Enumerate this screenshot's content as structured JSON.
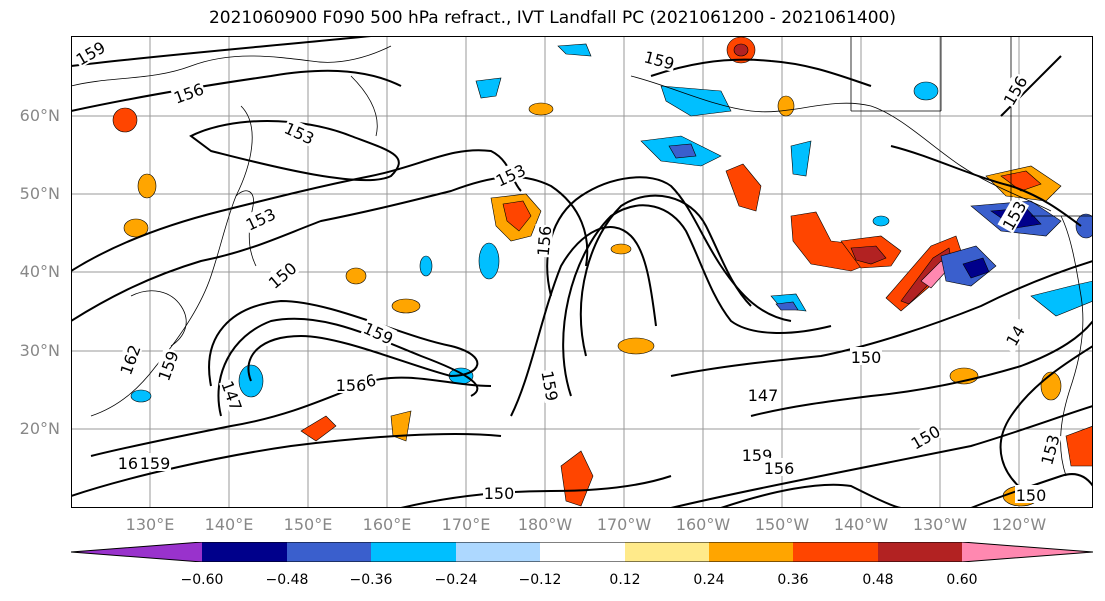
{
  "title": "2021060900 F090 500 hPa refract., IVT Landfall PC (2021061200 - 2021061400)",
  "lat_labels": [
    "60°N",
    "50°N",
    "40°N",
    "30°N",
    "20°N"
  ],
  "lon_labels": [
    "130°E",
    "140°E",
    "150°E",
    "160°E",
    "170°E",
    "180°W",
    "170°W",
    "160°W",
    "150°W",
    "140°W",
    "130°W",
    "120°W"
  ],
  "contour_labels": [
    "159",
    "156",
    "153",
    "153",
    "153",
    "150",
    "156",
    "159",
    "159",
    "156",
    "162",
    "159",
    "147",
    "156",
    "162",
    "159",
    "150",
    "150",
    "147",
    "150",
    "159",
    "156",
    "150",
    "153",
    "156",
    "153",
    "14",
    "159"
  ],
  "colorbar": {
    "ticks": [
      "−0.60",
      "−0.48",
      "−0.36",
      "−0.24",
      "−0.12",
      "0.12",
      "0.24",
      "0.36",
      "0.48",
      "0.60"
    ],
    "colors": [
      "#9932cc",
      "#00008b",
      "#3a5fcd",
      "#00bfff",
      "#add8ff",
      "#ffffff",
      "#ffea8a",
      "#ffa500",
      "#ff4500",
      "#b22222",
      "#ff88b0"
    ]
  }
}
